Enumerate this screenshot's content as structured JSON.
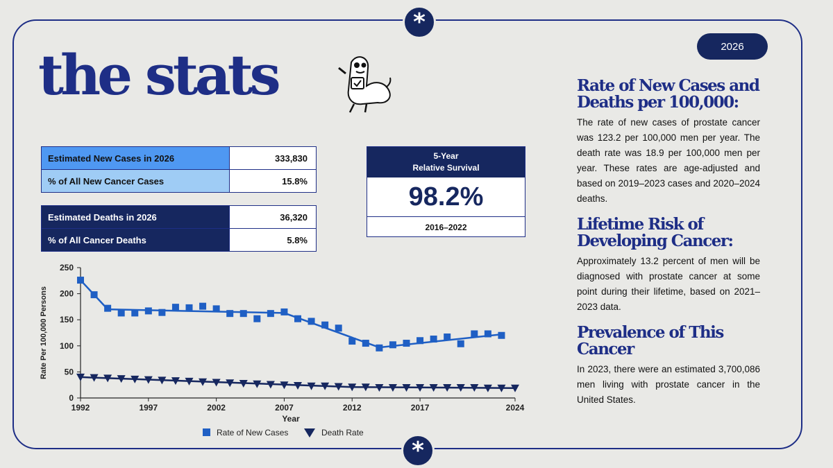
{
  "badge": {
    "year": "2026"
  },
  "title": "the stats",
  "stats_new": [
    {
      "label": "Estimated New Cases in 2026",
      "value": "333,830"
    },
    {
      "label": "% of All New Cancer Cases",
      "value": "15.8%"
    }
  ],
  "stats_deaths": [
    {
      "label": "Estimated Deaths in 2026",
      "value": "36,320"
    },
    {
      "label": "% of All Cancer Deaths",
      "value": "5.8%"
    }
  ],
  "survival": {
    "line1": "5-Year",
    "line2": "Relative Survival",
    "value": "98.2%",
    "range": "2016–2022"
  },
  "sections": [
    {
      "title": "Rate of New Cases and Deaths per 100,000:",
      "body": "The rate of new cases of prostate cancer was 123.2 per 100,000 men per year. The death rate was 18.9 per 100,000 men per year. These rates are age-adjusted and based on 2019–2023 cases and 2020–2024 deaths."
    },
    {
      "title": "Lifetime Risk of Developing Cancer:",
      "body": "Approximately 13.2 percent of men will be diagnosed with prostate cancer at some point during their lifetime, based on 2021–2023 data."
    },
    {
      "title": "Prevalence of This Cancer",
      "body": "In 2023, there were an estimated 3,700,086 men living with prostate cancer in the United States."
    }
  ],
  "colors": {
    "navy": "#16275f",
    "series_new": "#1f5fc4",
    "series_death": "#16275f"
  },
  "chart_data": {
    "type": "line",
    "xlabel": "Year",
    "ylabel": "Rate Per 100,000 Persons",
    "ylim": [
      0,
      250
    ],
    "xlim": [
      1992,
      2024
    ],
    "x_ticks": [
      "1992",
      "1997",
      "2002",
      "2007",
      "2012",
      "2017",
      "2024"
    ],
    "y_ticks": [
      "0",
      "50",
      "100",
      "150",
      "200",
      "250"
    ],
    "legend_position": "bottom",
    "x": [
      1992,
      1993,
      1994,
      1995,
      1996,
      1997,
      1998,
      1999,
      2000,
      2001,
      2002,
      2003,
      2004,
      2005,
      2006,
      2007,
      2008,
      2009,
      2010,
      2011,
      2012,
      2013,
      2014,
      2015,
      2016,
      2017,
      2018,
      2019,
      2020,
      2021,
      2022,
      2023,
      2024
    ],
    "series": [
      {
        "name": "Rate of New Cases",
        "marker": "square",
        "values": [
          226,
          198,
          172,
          163,
          163,
          167,
          164,
          174,
          173,
          176,
          171,
          162,
          162,
          152,
          162,
          165,
          152,
          147,
          140,
          134,
          109,
          105,
          96,
          102,
          105,
          110,
          113,
          117,
          104,
          123,
          123,
          120,
          null
        ],
        "trend": [
          [
            1992,
            226
          ],
          [
            1994,
            170
          ],
          [
            2007,
            163
          ],
          [
            2014,
            97
          ],
          [
            2023,
            122
          ]
        ]
      },
      {
        "name": "Death Rate",
        "marker": "triangle-down",
        "values": [
          40,
          39,
          38,
          37,
          36,
          35,
          34,
          33,
          32,
          31,
          30,
          29,
          28,
          27,
          26,
          25,
          24,
          23,
          23,
          22,
          21,
          21,
          20,
          20,
          20,
          20,
          20,
          20,
          20,
          20,
          19,
          19,
          19
        ],
        "trend": [
          [
            1992,
            40
          ],
          [
            2012,
            21
          ],
          [
            2024,
            19
          ]
        ]
      }
    ]
  }
}
